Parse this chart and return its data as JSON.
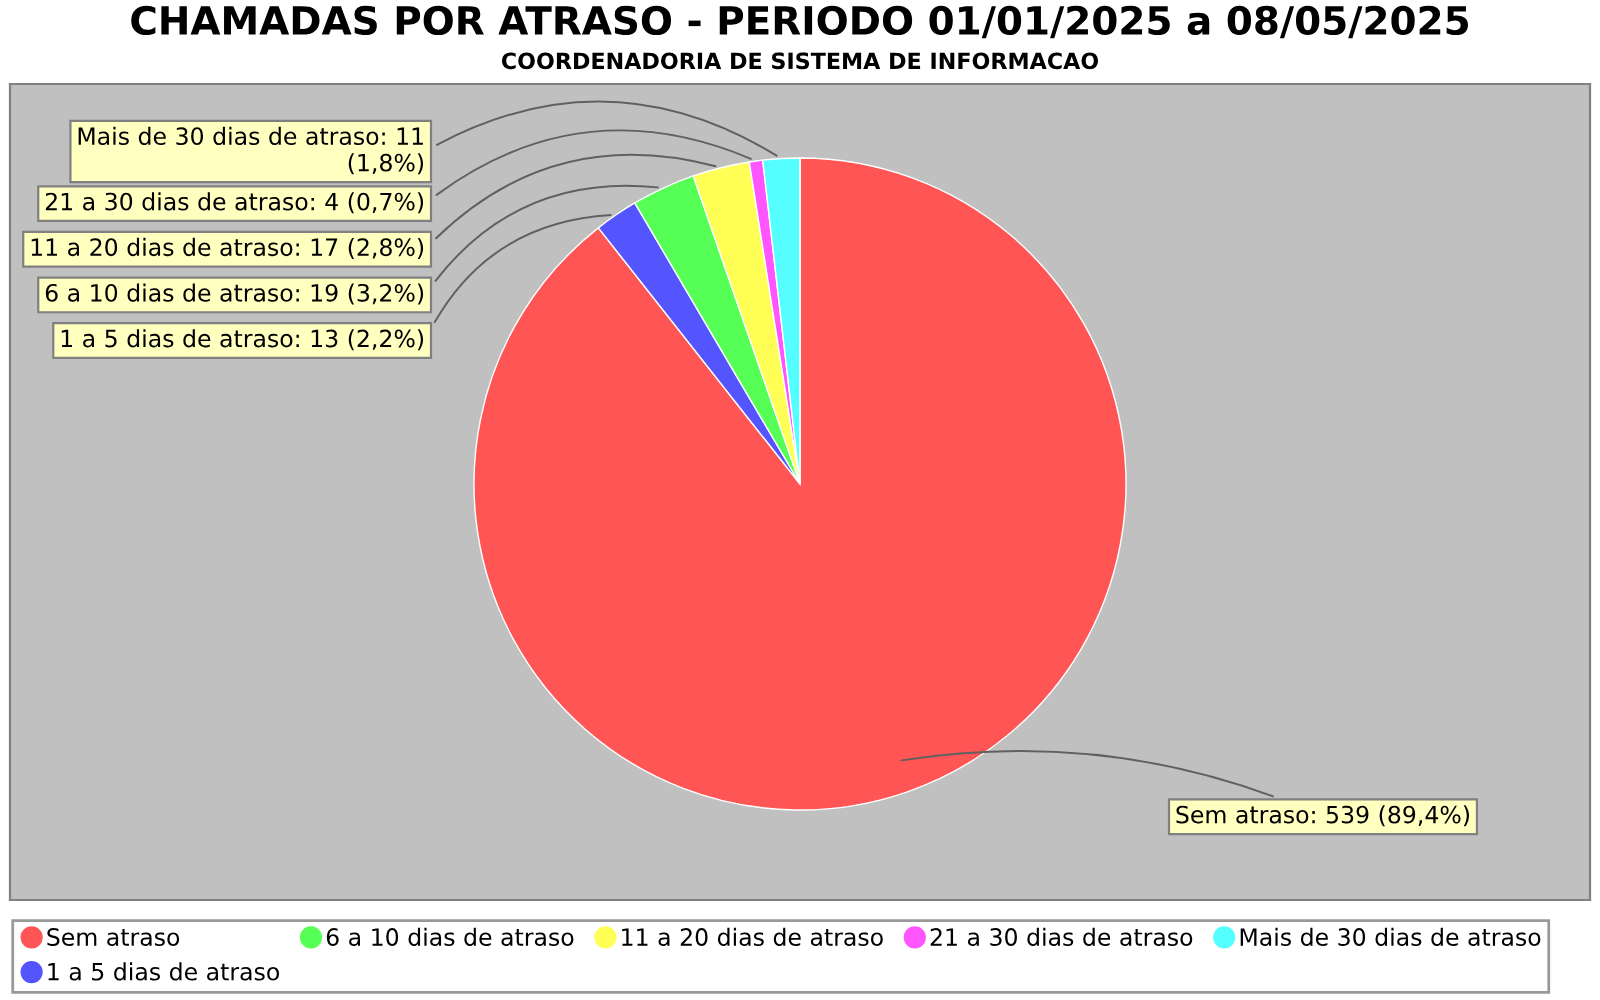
{
  "chart_data": {
    "type": "pie",
    "title": "CHAMADAS POR ATRASO - PERIODO 01/01/2025 a 08/05/2025",
    "subtitle": "COORDENADORIA DE SISTEMA DE INFORMACAO",
    "categories": [
      "Sem atraso",
      "1 a 5 dias de atraso",
      "6 a 10 dias de atraso",
      "11 a 20 dias de atraso",
      "21 a 30 dias de atraso",
      "Mais de 30 dias de atraso"
    ],
    "values": [
      539,
      13,
      19,
      17,
      4,
      11
    ],
    "colors": [
      "#ff5555",
      "#5555ff",
      "#55ff55",
      "#ffff55",
      "#ff55ff",
      "#55ffff"
    ],
    "value_labels": [
      "Sem atraso: 539 (89,4%)",
      "1 a 5 dias de atraso: 13 (2,2%)",
      "6 a 10 dias de atraso: 19 (3,2%)",
      "11 a 20 dias de atraso: 17 (2,8%)",
      "21 a 30 dias de atraso: 4 (0,7%)",
      "Mais de 30 dias de atraso: 11\n(1,8%)"
    ],
    "legend": "bottom"
  }
}
